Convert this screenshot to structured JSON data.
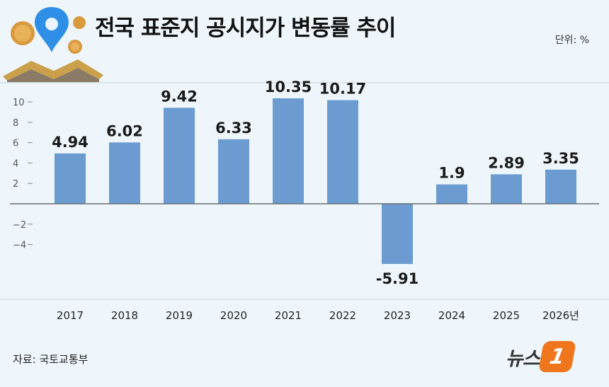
{
  "header": {
    "title": "전국 표준지 공시지가 변동률 추이",
    "unit": "단위: %"
  },
  "footer": {
    "source": "자료: 국토교통부",
    "brand_text": "뉴스",
    "brand_badge": "1"
  },
  "decoration": {
    "icons": [
      "coin-icon",
      "location-pin-icon",
      "roof-icon"
    ]
  },
  "colors": {
    "bar": "#6b9bd1",
    "background": "#eef6fb",
    "brand": "#f0761e"
  },
  "chart_data": {
    "type": "bar",
    "categories": [
      "2017",
      "2018",
      "2019",
      "2020",
      "2021",
      "2022",
      "2023",
      "2024",
      "2025",
      "2026년"
    ],
    "values": [
      4.94,
      6.02,
      9.42,
      6.33,
      10.35,
      10.17,
      -5.91,
      1.9,
      2.89,
      3.35
    ],
    "value_labels": [
      "4.94",
      "6.02",
      "9.42",
      "6.33",
      "10.35",
      "10.17",
      "-5.91",
      "1.9",
      "2.89",
      "3.35"
    ],
    "y_ticks": [
      10,
      8,
      6,
      4,
      2,
      -2,
      -4
    ],
    "y_tick_labels": [
      "10",
      "8",
      "6",
      "4",
      "2",
      "−2",
      "−4"
    ],
    "ylim": [
      -6,
      11
    ],
    "grid": false
  }
}
